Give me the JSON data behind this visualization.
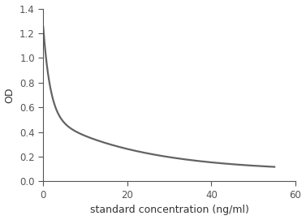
{
  "xlabel": "standard concentration (ng/ml)",
  "ylabel": "OD",
  "xlim": [
    0,
    60
  ],
  "ylim": [
    0,
    1.4
  ],
  "xticks": [
    0,
    20,
    40,
    60
  ],
  "yticks": [
    0,
    0.2,
    0.4,
    0.6,
    0.8,
    1.0,
    1.2,
    1.4
  ],
  "line_color": "#636363",
  "line_width": 1.6,
  "background_color": "#ffffff",
  "curve_a": 1.15,
  "curve_b": 0.14,
  "curve_c": 0.75,
  "xlabel_fontsize": 9,
  "ylabel_fontsize": 9,
  "tick_fontsize": 8.5,
  "spine_color": "#555555",
  "figsize": [
    3.77,
    2.71
  ],
  "dpi": 100
}
